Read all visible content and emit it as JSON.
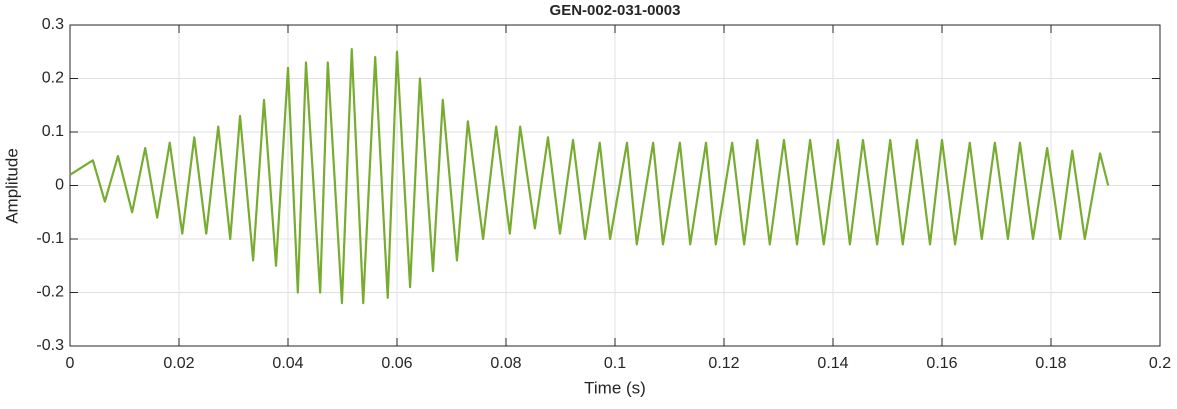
{
  "chart_data": {
    "type": "line",
    "title": "GEN-002-031-0003",
    "xlabel": "Time (s)",
    "ylabel": "Amplitude",
    "color": "#77ac30",
    "grid": true,
    "xlim": [
      0,
      0.2
    ],
    "ylim": [
      -0.3,
      0.3
    ],
    "xticks": [
      0,
      0.02,
      0.04,
      0.06,
      0.08,
      0.1,
      0.12,
      0.14,
      0.16,
      0.18,
      0.2
    ],
    "yticks": [
      -0.3,
      -0.2,
      -0.1,
      0,
      0.1,
      0.2,
      0.3
    ],
    "x": [
      0,
      0.0042,
      0.0064,
      0.0088,
      0.0114,
      0.0138,
      0.016,
      0.0183,
      0.0206,
      0.0228,
      0.025,
      0.0272,
      0.0294,
      0.0312,
      0.0336,
      0.0356,
      0.0378,
      0.04,
      0.0418,
      0.0433,
      0.0459,
      0.0473,
      0.0499,
      0.0517,
      0.0538,
      0.056,
      0.0583,
      0.06,
      0.0624,
      0.0642,
      0.0666,
      0.0684,
      0.071,
      0.073,
      0.0758,
      0.0782,
      0.0807,
      0.0826,
      0.0853,
      0.0877,
      0.0899,
      0.0923,
      0.0945,
      0.0972,
      0.0991,
      0.1022,
      0.104,
      0.107,
      0.1088,
      0.1119,
      0.1138,
      0.1167,
      0.1185,
      0.1215,
      0.1237,
      0.1261,
      0.1284,
      0.131,
      0.1334,
      0.1358,
      0.1383,
      0.1409,
      0.1431,
      0.1455,
      0.1481,
      0.1505,
      0.1528,
      0.1554,
      0.1578,
      0.16,
      0.1624,
      0.1651,
      0.1673,
      0.1697,
      0.1721,
      0.1743,
      0.1767,
      0.1793,
      0.1817,
      0.1839,
      0.1862,
      0.189,
      0.1905
    ],
    "values": [
      0.02,
      0.047,
      -0.03,
      0.055,
      -0.05,
      0.07,
      -0.06,
      0.08,
      -0.09,
      0.09,
      -0.09,
      0.11,
      -0.1,
      0.13,
      -0.14,
      0.16,
      -0.15,
      0.22,
      -0.2,
      0.23,
      -0.2,
      0.23,
      -0.22,
      0.255,
      -0.22,
      0.24,
      -0.21,
      0.25,
      -0.19,
      0.2,
      -0.16,
      0.16,
      -0.14,
      0.12,
      -0.1,
      0.11,
      -0.09,
      0.11,
      -0.08,
      0.09,
      -0.09,
      0.085,
      -0.1,
      0.08,
      -0.1,
      0.08,
      -0.11,
      0.08,
      -0.11,
      0.08,
      -0.11,
      0.08,
      -0.11,
      0.08,
      -0.11,
      0.085,
      -0.11,
      0.085,
      -0.11,
      0.085,
      -0.11,
      0.085,
      -0.11,
      0.085,
      -0.11,
      0.085,
      -0.11,
      0.085,
      -0.11,
      0.085,
      -0.11,
      0.08,
      -0.1,
      0.08,
      -0.1,
      0.08,
      -0.1,
      0.07,
      -0.1,
      0.065,
      -0.1,
      0.06,
      0
    ]
  }
}
